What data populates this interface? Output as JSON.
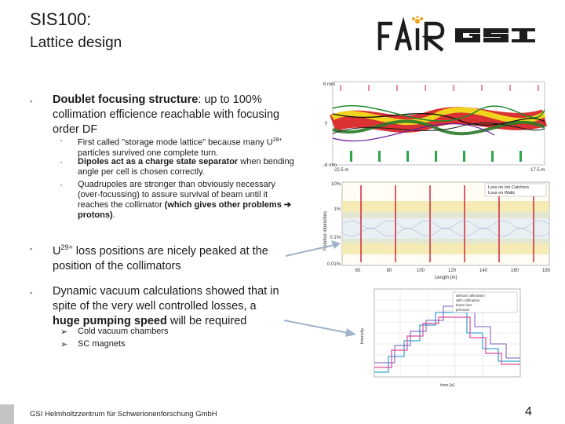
{
  "slide": {
    "title": "SIS100:",
    "subtitle": "Lattice design",
    "page_number": "4",
    "footer": "GSI Helmholtzzentrum für Schwerionenforschung GmbH"
  },
  "logos": {
    "fair": "FAIR",
    "gsi": "GSI"
  },
  "bullets": [
    {
      "bold": "Doublet focusing structure",
      "text": ": up to 100% collimation efficience reachable with focusing order DF",
      "sub": [
        {
          "pre": "First called \"storage mode lattice\" because many U",
          "sup": "28+",
          "post": " particles survived one complete turn."
        },
        {
          "bold": "Dipoles act as a charge state separator",
          "post": " when bending angle per cell is chosen correctly."
        },
        {
          "pre": "Quadrupoles are stronger than obviously necessary (over-focussing) to assure survival of beam until it reaches the collimator ",
          "bold": "(which gives other problems ➔ protons)",
          "post": "."
        }
      ]
    },
    {
      "pre": "U",
      "sup": "29+",
      "post": " loss positions are nicely peaked at the position of the collimators"
    },
    {
      "pre": "Dynamic vacuum calculations showed that in spite of the very well controlled losses, a ",
      "bold": "huge pumping speed",
      "post": " will be required",
      "sub": [
        "Cold vacuum chambers",
        "SC magnets"
      ]
    }
  ],
  "figures": {
    "tracking": {
      "top_left": "6 mm",
      "bottom_left": "-6 mm",
      "x_left": "22.5 m",
      "x_right": "17.5 m",
      "y": "y"
    },
    "losses": {
      "ylabel": "Relative intensities",
      "legend": [
        "Loss on Ion Catchers",
        "Loss on Walls"
      ],
      "yticks": [
        "10%",
        "1%",
        "0.1%",
        "0.01%"
      ],
      "xticks": [
        "60",
        "80",
        "100",
        "120",
        "140",
        "160",
        "180"
      ],
      "xlabel": "Length [m]"
    },
    "vacuum": {
      "ylabel": "Intensity",
      "xlabel": "time [s]",
      "legend": [
        "without collimation",
        "with collimation",
        "beam loss",
        "pressure"
      ]
    }
  }
}
